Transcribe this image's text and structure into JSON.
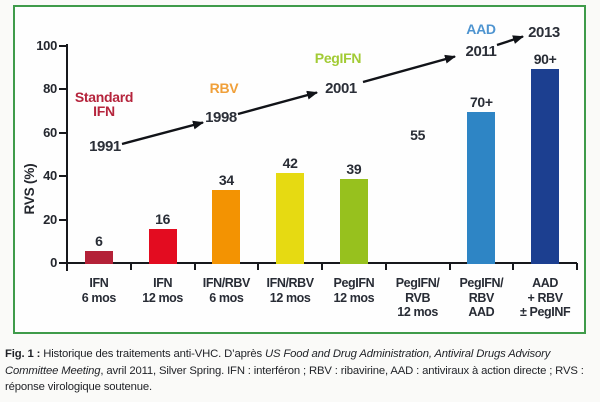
{
  "figure": {
    "border_color": "#3f9b4a"
  },
  "chart_data": {
    "type": "bar",
    "title": "",
    "xlabel": "",
    "ylabel": "RVS (%)",
    "ylim": [
      0,
      100
    ],
    "yticks": [
      0,
      20,
      40,
      60,
      80,
      100
    ],
    "grid": false,
    "legend": "none",
    "points": [
      {
        "category": "IFN\n6 mos",
        "value": 6,
        "label": "6",
        "color": "#b42138",
        "bar": true
      },
      {
        "category": "IFN\n12 mos",
        "value": 16,
        "label": "16",
        "color": "#e30c20",
        "bar": true
      },
      {
        "category": "IFN/RBV\n6 mos",
        "value": 34,
        "label": "34",
        "color": "#f39302",
        "bar": true
      },
      {
        "category": "IFN/RBV\n12 mos",
        "value": 42,
        "label": "42",
        "color": "#e6da12",
        "bar": true
      },
      {
        "category": "PegIFN\n12 mos",
        "value": 39,
        "label": "39",
        "color": "#97c11e",
        "bar": true
      },
      {
        "category": "PegIFN/\nRVB\n12 mos",
        "value": 55,
        "label": "55",
        "color": null,
        "bar": false
      },
      {
        "category": "PegIFN/\nRBV\nAAD",
        "value": 70,
        "label": "70+",
        "color": "#2e85c5",
        "bar": true
      },
      {
        "category": "AAD\n+ RBV\n± PegINF",
        "value": 90,
        "label": "90+",
        "color": "#1c3f90",
        "bar": true
      }
    ],
    "timeline": [
      {
        "label": "Standard\nIFN",
        "year": "1991",
        "color": "#b5243c"
      },
      {
        "label": "RBV",
        "year": "1998",
        "color": "#f0a03a"
      },
      {
        "label": "PegIFN",
        "year": "2001",
        "color": "#a2cb35"
      },
      {
        "label": "AAD",
        "year": "2011",
        "color": "#4e94d0"
      },
      {
        "label": "",
        "year": "2013",
        "color": "#2b2f38"
      }
    ]
  },
  "caption": {
    "fig_label": "Fig. 1 :",
    "text_1": " Historique des traitements anti-VHC. D’après ",
    "italic": "US Food and Drug Administration, Antiviral Drugs Advisory Committee Meeting",
    "text_2": ", avril 2011, Silver Spring. IFN : interféron ; RBV : ribavirine, AAD : antiviraux à action directe ; RVS : réponse virologique soutenue."
  }
}
